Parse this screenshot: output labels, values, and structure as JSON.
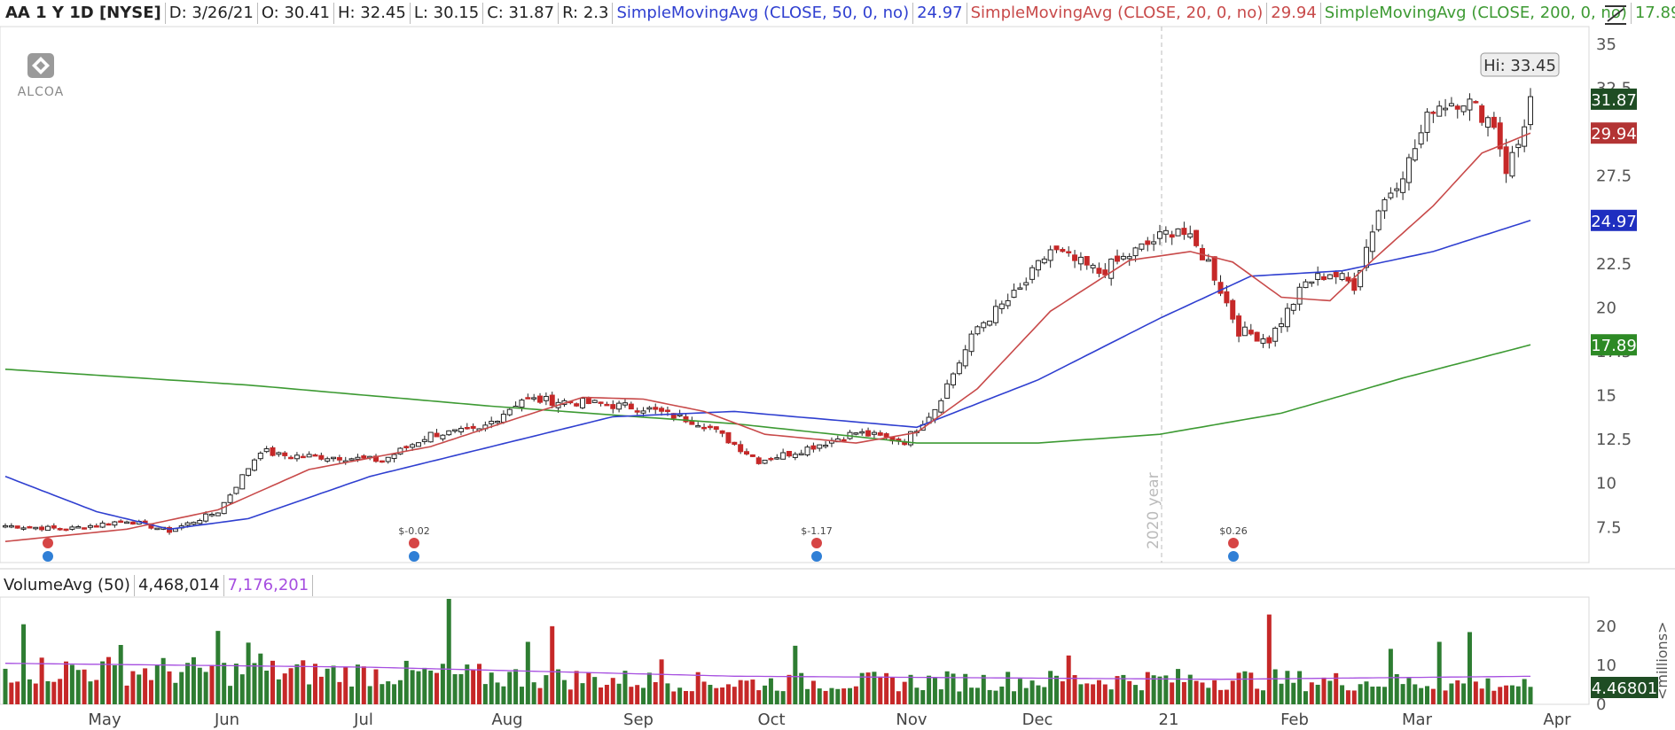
{
  "header": {
    "symbol": "AA 1 Y 1D [NYSE]",
    "date": "D: 3/26/21",
    "open": "O: 30.41",
    "high": "H: 32.45",
    "low": "L: 30.15",
    "close": "C: 31.87",
    "range": "R: 2.3",
    "sma50_label": "SimpleMovingAvg (CLOSE, 50, 0, no)",
    "sma50_value": "24.97",
    "sma20_label": "SimpleMovingAvg (CLOSE, 20, 0, no)",
    "sma20_value": "29.94",
    "sma200_label": "SimpleMovingAvg (CLOSE, 200, 0, no)",
    "sma200_value": "17.89"
  },
  "logo": {
    "text": "ALCOA"
  },
  "volume_header": {
    "label": "VolumeAvg (50)",
    "volume": "4,468,014",
    "avg": "7,176,201"
  },
  "colors": {
    "up": "#2e7d32",
    "down": "#c62828",
    "sma50": "#2f3fd0",
    "sma20": "#c84a4a",
    "sma200": "#3d9a33",
    "vol_avg": "#a64ee0",
    "price_badge": "#1f4d24"
  },
  "chart_data": [
    {
      "type": "candlestick",
      "title": "",
      "ylim": [
        5.5,
        36
      ],
      "yticks": [
        "35",
        "32.5",
        "27.5",
        "25",
        "22.5",
        "20",
        "17.5",
        "15",
        "12.5",
        "10",
        "7.5"
      ],
      "x_months": [
        "May",
        "Jun",
        "Jul",
        "Aug",
        "Sep",
        "Oct",
        "Nov",
        "Dec",
        "21",
        "Feb",
        "Mar",
        "Apr"
      ],
      "year_marker": "2020 year",
      "annotations": [
        {
          "label": "Hi: 33.45",
          "value": 33.45
        }
      ],
      "events": [
        {
          "label": "",
          "month_offset": -0.45
        },
        {
          "label": "$-0.02",
          "month_offset": 2.35
        },
        {
          "label": "$-1.17",
          "month_offset": 5.3
        },
        {
          "label": "$0.26",
          "month_offset": 8.5
        }
      ],
      "price_badges": [
        {
          "label": "31.87",
          "value": 31.87,
          "series": "close"
        },
        {
          "label": "29.94",
          "value": 29.94,
          "series": "sma20"
        },
        {
          "label": "24.97",
          "value": 24.97,
          "series": "sma50"
        },
        {
          "label": "17.89",
          "value": 17.89,
          "series": "sma200"
        }
      ],
      "close_anchors": [
        [
          0,
          7.6
        ],
        [
          10,
          7.4
        ],
        [
          20,
          7.9
        ],
        [
          27,
          7.3
        ],
        [
          35,
          8.4
        ],
        [
          42,
          11.9
        ],
        [
          45,
          11.6
        ],
        [
          55,
          11.5
        ],
        [
          62,
          11.3
        ],
        [
          70,
          12.8
        ],
        [
          78,
          13.0
        ],
        [
          85,
          14.8
        ],
        [
          95,
          14.6
        ],
        [
          105,
          14.3
        ],
        [
          115,
          13.4
        ],
        [
          124,
          11.3
        ],
        [
          130,
          11.8
        ],
        [
          140,
          12.9
        ],
        [
          148,
          12.4
        ],
        [
          153,
          14.3
        ],
        [
          160,
          18.9
        ],
        [
          167,
          21.0
        ],
        [
          172,
          23.3
        ],
        [
          180,
          22.0
        ],
        [
          188,
          23.6
        ],
        [
          193,
          24.6
        ],
        [
          198,
          22.6
        ],
        [
          203,
          18.7
        ],
        [
          208,
          18.2
        ],
        [
          214,
          21.4
        ],
        [
          218,
          22.0
        ],
        [
          222,
          21.3
        ],
        [
          226,
          25.6
        ],
        [
          231,
          28.3
        ],
        [
          235,
          31.5
        ],
        [
          240,
          31.9
        ],
        [
          245,
          30.5
        ],
        [
          247,
          27.9
        ],
        [
          249,
          29.3
        ],
        [
          251,
          31.87
        ]
      ],
      "sma20_anchors": [
        [
          0,
          6.7
        ],
        [
          20,
          7.4
        ],
        [
          35,
          8.5
        ],
        [
          50,
          10.8
        ],
        [
          70,
          12.1
        ],
        [
          85,
          13.8
        ],
        [
          95,
          14.9
        ],
        [
          105,
          14.8
        ],
        [
          115,
          14.1
        ],
        [
          125,
          12.8
        ],
        [
          140,
          12.3
        ],
        [
          150,
          12.9
        ],
        [
          160,
          15.4
        ],
        [
          172,
          19.8
        ],
        [
          185,
          22.7
        ],
        [
          195,
          23.2
        ],
        [
          202,
          22.6
        ],
        [
          210,
          20.6
        ],
        [
          218,
          20.4
        ],
        [
          225,
          22.7
        ],
        [
          235,
          25.8
        ],
        [
          243,
          28.8
        ],
        [
          251,
          29.94
        ]
      ],
      "sma50_anchors": [
        [
          0,
          10.4
        ],
        [
          15,
          8.4
        ],
        [
          27,
          7.4
        ],
        [
          40,
          8.0
        ],
        [
          60,
          10.4
        ],
        [
          80,
          12.1
        ],
        [
          100,
          13.8
        ],
        [
          120,
          14.1
        ],
        [
          150,
          13.2
        ],
        [
          170,
          15.9
        ],
        [
          190,
          19.4
        ],
        [
          205,
          21.8
        ],
        [
          220,
          22.1
        ],
        [
          235,
          23.2
        ],
        [
          251,
          24.97
        ]
      ],
      "sma200_anchors": [
        [
          0,
          16.5
        ],
        [
          40,
          15.6
        ],
        [
          80,
          14.4
        ],
        [
          120,
          13.4
        ],
        [
          150,
          12.3
        ],
        [
          170,
          12.3
        ],
        [
          190,
          12.8
        ],
        [
          210,
          14.0
        ],
        [
          230,
          16.0
        ],
        [
          251,
          17.89
        ]
      ]
    },
    {
      "type": "bar",
      "title": "",
      "unit_label": "<millions>",
      "ylim": [
        0,
        27
      ],
      "yticks": [
        "20",
        "10",
        "0"
      ],
      "last_value_label": "4.46801",
      "avg_value": 7.18,
      "spikes": [
        [
          3,
          20.5
        ],
        [
          19,
          15.2
        ],
        [
          35,
          18.8
        ],
        [
          40,
          15.8
        ],
        [
          42,
          13.0
        ],
        [
          73,
          27.0
        ],
        [
          86,
          16.0
        ],
        [
          90,
          20.0
        ],
        [
          108,
          11.5
        ],
        [
          130,
          15.0
        ],
        [
          175,
          12.5
        ],
        [
          208,
          23.0
        ],
        [
          228,
          14.2
        ],
        [
          241,
          18.5
        ],
        [
          236,
          16.0
        ]
      ]
    }
  ]
}
